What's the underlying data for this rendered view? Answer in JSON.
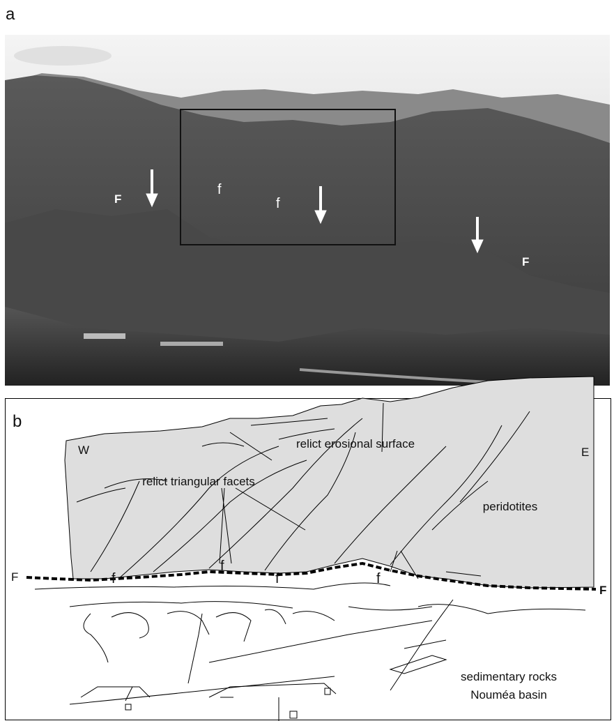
{
  "panel_a": {
    "label": "a",
    "fault_labels": [
      "F",
      "F"
    ],
    "facet_labels": [
      "f",
      "f"
    ]
  },
  "panel_b": {
    "label": "b",
    "west": "W",
    "east": "E",
    "erosional_surface": "relict erosional surface",
    "triangular_facets": "relict triangular facets",
    "peridotites": "peridotites",
    "facet_labels": [
      "f",
      "f",
      "f",
      "f"
    ],
    "fault_labels": [
      "F",
      "F"
    ],
    "sedimentary": [
      "sedimentary rocks",
      "Nouméa basin"
    ]
  }
}
